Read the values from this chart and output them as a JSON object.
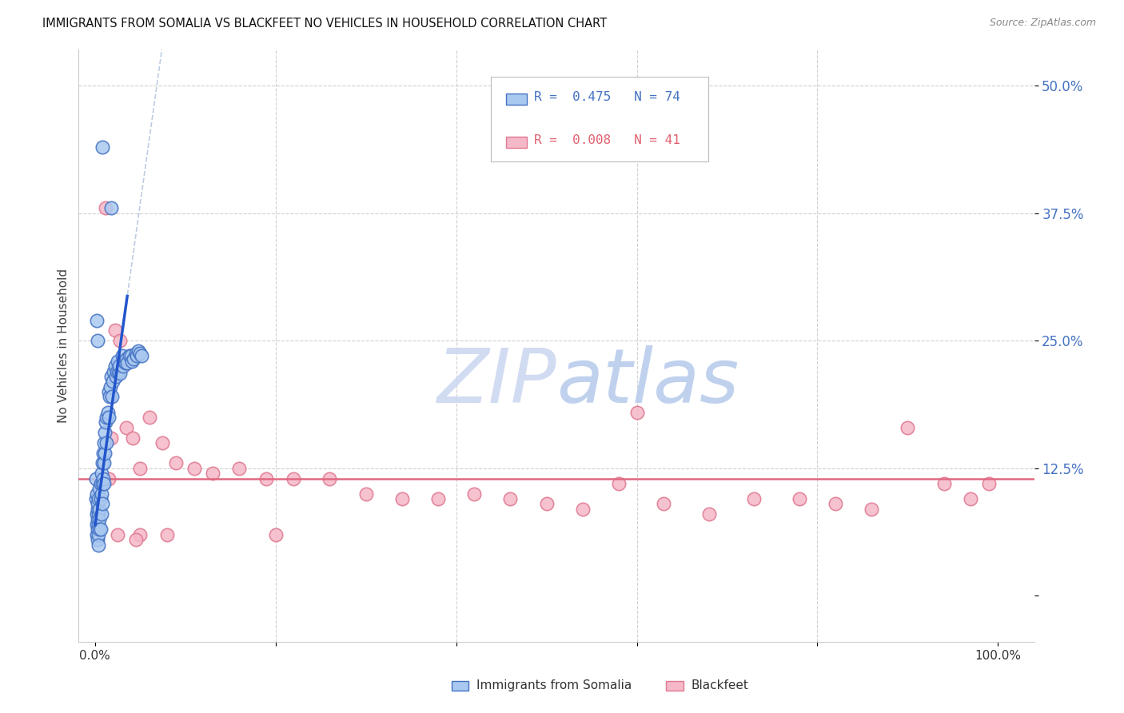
{
  "title": "IMMIGRANTS FROM SOMALIA VS BLACKFEET NO VEHICLES IN HOUSEHOLD CORRELATION CHART",
  "source": "Source: ZipAtlas.com",
  "ylabel": "No Vehicles in Household",
  "ytick_values": [
    0.0,
    0.125,
    0.25,
    0.375,
    0.5
  ],
  "ytick_labels": [
    "",
    "12.5%",
    "25.0%",
    "37.5%",
    "50.0%"
  ],
  "xtick_values": [
    0.0,
    0.2,
    0.4,
    0.6,
    0.8,
    1.0
  ],
  "xtick_labels": [
    "0.0%",
    "",
    "",
    "",
    "",
    "100.0%"
  ],
  "xmin": -0.018,
  "xmax": 1.04,
  "ymin": -0.045,
  "ymax": 0.535,
  "somalia_color": "#aac9f0",
  "blackfeet_color": "#f5b8c8",
  "somalia_edge": "#4472c4",
  "blackfeet_edge": "#e07890",
  "trend_somalia_color": "#2255cc",
  "trend_blackfeet_color": "#e06880",
  "watermark_zip_color": "#c5d8f5",
  "watermark_atlas_color": "#b8cce8",
  "grid_color": "#d0d0d0",
  "somalia_x": [
    0.001,
    0.001,
    0.002,
    0.002,
    0.002,
    0.002,
    0.003,
    0.003,
    0.003,
    0.003,
    0.003,
    0.004,
    0.004,
    0.004,
    0.004,
    0.004,
    0.005,
    0.005,
    0.005,
    0.005,
    0.006,
    0.006,
    0.006,
    0.007,
    0.007,
    0.007,
    0.008,
    0.008,
    0.008,
    0.009,
    0.009,
    0.01,
    0.01,
    0.01,
    0.011,
    0.011,
    0.012,
    0.013,
    0.013,
    0.014,
    0.015,
    0.015,
    0.016,
    0.017,
    0.018,
    0.019,
    0.02,
    0.021,
    0.022,
    0.023,
    0.024,
    0.025,
    0.026,
    0.027,
    0.028,
    0.03,
    0.031,
    0.032,
    0.034,
    0.035,
    0.036,
    0.038,
    0.04,
    0.041,
    0.043,
    0.045,
    0.046,
    0.048,
    0.05,
    0.052,
    0.002,
    0.003,
    0.008,
    0.018
  ],
  "somalia_y": [
    0.115,
    0.095,
    0.08,
    0.1,
    0.07,
    0.06,
    0.085,
    0.09,
    0.075,
    0.065,
    0.055,
    0.095,
    0.08,
    0.07,
    0.06,
    0.05,
    0.105,
    0.085,
    0.075,
    0.065,
    0.11,
    0.095,
    0.065,
    0.12,
    0.1,
    0.08,
    0.13,
    0.11,
    0.09,
    0.14,
    0.115,
    0.15,
    0.13,
    0.11,
    0.16,
    0.14,
    0.17,
    0.175,
    0.15,
    0.18,
    0.2,
    0.175,
    0.195,
    0.205,
    0.215,
    0.195,
    0.21,
    0.22,
    0.225,
    0.215,
    0.22,
    0.23,
    0.22,
    0.225,
    0.218,
    0.235,
    0.225,
    0.23,
    0.228,
    0.232,
    0.228,
    0.235,
    0.235,
    0.23,
    0.232,
    0.238,
    0.235,
    0.24,
    0.238,
    0.235,
    0.27,
    0.25,
    0.44,
    0.38
  ],
  "blackfeet_x": [
    0.012,
    0.015,
    0.018,
    0.022,
    0.028,
    0.035,
    0.042,
    0.05,
    0.06,
    0.075,
    0.09,
    0.11,
    0.13,
    0.16,
    0.19,
    0.22,
    0.26,
    0.3,
    0.34,
    0.38,
    0.42,
    0.46,
    0.5,
    0.54,
    0.58,
    0.63,
    0.68,
    0.73,
    0.78,
    0.82,
    0.86,
    0.9,
    0.94,
    0.97,
    0.99,
    0.05,
    0.08,
    0.025,
    0.045,
    0.2,
    0.6
  ],
  "blackfeet_y": [
    0.38,
    0.115,
    0.155,
    0.26,
    0.25,
    0.165,
    0.155,
    0.125,
    0.175,
    0.15,
    0.13,
    0.125,
    0.12,
    0.125,
    0.115,
    0.115,
    0.115,
    0.1,
    0.095,
    0.095,
    0.1,
    0.095,
    0.09,
    0.085,
    0.11,
    0.09,
    0.08,
    0.095,
    0.095,
    0.09,
    0.085,
    0.165,
    0.11,
    0.095,
    0.11,
    0.06,
    0.06,
    0.06,
    0.055,
    0.06,
    0.18
  ],
  "trend_som_x0": 0.0,
  "trend_som_y0": 0.068,
  "trend_som_x1": 0.036,
  "trend_som_y1": 0.295,
  "trend_som_xdash_end": 1.04,
  "trend_bla_y": 0.115,
  "r_somalia": 0.475,
  "n_somalia": 74,
  "r_blackfeet": 0.008,
  "n_blackfeet": 41
}
